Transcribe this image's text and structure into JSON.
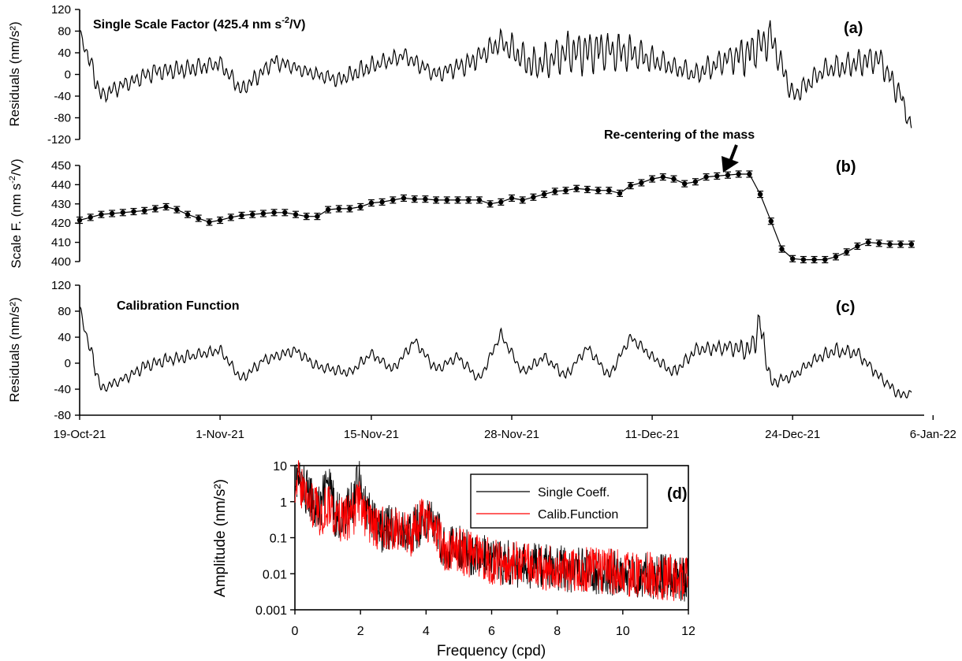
{
  "chart_data": [
    {
      "panel": "a",
      "type": "line",
      "panel_label": "(a)",
      "title": "Single Scale Factor (425.4 nm s-2/V)",
      "title_main": "Single Scale Factor (425.4 nm s",
      "title_sup": "-2",
      "title_end": "/V)",
      "ylabel": "Residuals (nm/s²)",
      "ylim": [
        -120,
        120
      ],
      "yticks": [
        -120,
        -80,
        -40,
        0,
        40,
        80,
        120
      ],
      "xlim": [
        "2021-10-19",
        "2022-01-06"
      ],
      "series": [
        {
          "x": [
            "2021-10-19",
            "2021-10-20",
            "2021-10-21",
            "2021-10-23",
            "2021-10-26",
            "2021-10-29",
            "2021-11-01",
            "2021-11-03",
            "2021-11-06",
            "2021-11-09",
            "2021-11-12",
            "2021-11-15",
            "2021-11-18",
            "2021-11-21",
            "2021-11-24",
            "2021-11-27",
            "2021-11-30",
            "2021-12-03",
            "2021-12-06",
            "2021-12-09",
            "2021-12-12",
            "2021-12-15",
            "2021-12-18",
            "2021-12-20",
            "2021-12-22",
            "2021-12-24",
            "2021-12-27",
            "2021-12-30",
            "2022-01-01",
            "2022-01-03",
            "2022-01-04"
          ],
          "values": [
            80,
            20,
            -40,
            -20,
            5,
            10,
            20,
            -30,
            25,
            5,
            -10,
            15,
            35,
            0,
            20,
            60,
            15,
            40,
            45,
            40,
            20,
            0,
            30,
            40,
            70,
            -40,
            10,
            20,
            30,
            -40,
            -100
          ],
          "amplitude": [
            5,
            25,
            15,
            15,
            18,
            18,
            15,
            15,
            15,
            12,
            15,
            18,
            15,
            15,
            20,
            25,
            35,
            40,
            40,
            35,
            20,
            20,
            25,
            40,
            35,
            20,
            20,
            25,
            25,
            25,
            15
          ]
        }
      ]
    },
    {
      "panel": "b",
      "type": "line",
      "panel_label": "(b)",
      "ylabel": "Scale F. (nm s-2/V)",
      "ylabel_main": "Scale F. (nm s",
      "ylabel_sup": "-2",
      "ylabel_end": "/V)",
      "annotation": "Re-centering of the mass",
      "annotation_date": "2021-12-21",
      "ylim": [
        400,
        450
      ],
      "yticks": [
        400,
        410,
        420,
        430,
        440,
        450
      ],
      "xlim": [
        "2021-10-19",
        "2022-01-06"
      ],
      "error_bars": true,
      "series": [
        {
          "x": [
            "2021-10-19",
            "2021-10-20",
            "2021-10-21",
            "2021-10-22",
            "2021-10-23",
            "2021-10-24",
            "2021-10-25",
            "2021-10-26",
            "2021-10-27",
            "2021-10-28",
            "2021-10-29",
            "2021-10-30",
            "2021-10-31",
            "2021-11-01",
            "2021-11-02",
            "2021-11-03",
            "2021-11-04",
            "2021-11-05",
            "2021-11-06",
            "2021-11-07",
            "2021-11-08",
            "2021-11-09",
            "2021-11-10",
            "2021-11-11",
            "2021-11-12",
            "2021-11-13",
            "2021-11-14",
            "2021-11-15",
            "2021-11-16",
            "2021-11-17",
            "2021-11-18",
            "2021-11-19",
            "2021-11-20",
            "2021-11-21",
            "2021-11-22",
            "2021-11-23",
            "2021-11-24",
            "2021-11-25",
            "2021-11-26",
            "2021-11-27",
            "2021-11-28",
            "2021-11-29",
            "2021-11-30",
            "2021-12-01",
            "2021-12-02",
            "2021-12-03",
            "2021-12-04",
            "2021-12-05",
            "2021-12-06",
            "2021-12-07",
            "2021-12-08",
            "2021-12-09",
            "2021-12-10",
            "2021-12-11",
            "2021-12-12",
            "2021-12-13",
            "2021-12-14",
            "2021-12-15",
            "2021-12-16",
            "2021-12-17",
            "2021-12-18",
            "2021-12-19",
            "2021-12-20",
            "2021-12-21",
            "2021-12-22",
            "2021-12-23",
            "2021-12-24",
            "2021-12-25",
            "2021-12-26",
            "2021-12-27",
            "2021-12-28",
            "2021-12-29",
            "2021-12-30",
            "2021-12-31",
            "2022-01-01",
            "2022-01-02",
            "2022-01-03",
            "2022-01-04"
          ],
          "values": [
            421.5,
            423,
            424.5,
            425,
            425.5,
            426,
            426.5,
            427.5,
            428.5,
            427,
            424.5,
            422.5,
            420.5,
            421.5,
            423,
            424,
            424.5,
            425,
            425.5,
            425.5,
            424.5,
            423.5,
            423.5,
            427,
            427.5,
            427.5,
            428.5,
            430.5,
            431,
            432,
            433,
            432.5,
            432.5,
            432,
            432,
            432,
            432,
            432,
            430,
            431,
            433,
            432,
            433.5,
            435,
            436.5,
            437,
            438,
            437.5,
            437,
            437,
            435.5,
            439.5,
            441,
            443,
            444,
            443,
            440.5,
            441.5,
            444,
            444.5,
            445,
            445.5,
            445.5,
            435,
            421,
            406.5,
            401.5,
            401,
            401,
            401,
            402.5,
            405,
            408,
            410,
            409.5,
            409,
            409,
            409
          ]
        }
      ]
    },
    {
      "panel": "c",
      "type": "line",
      "panel_label": "(c)",
      "title": "Calibration Function",
      "ylabel": "Residuals (nm/s²)",
      "ylim": [
        -80,
        120
      ],
      "yticks": [
        -80,
        -40,
        0,
        40,
        80,
        120
      ],
      "xlim": [
        "2021-10-19",
        "2022-01-06"
      ],
      "xticks": [
        "19-Oct-21",
        "1-Nov-21",
        "15-Nov-21",
        "28-Nov-21",
        "11-Dec-21",
        "24-Dec-21",
        "6-Jan-22"
      ],
      "series": [
        {
          "x": [
            "2021-10-19",
            "2021-10-20",
            "2021-10-21",
            "2021-10-23",
            "2021-10-25",
            "2021-10-27",
            "2021-10-29",
            "2021-11-01",
            "2021-11-03",
            "2021-11-05",
            "2021-11-08",
            "2021-11-10",
            "2021-11-13",
            "2021-11-15",
            "2021-11-17",
            "2021-11-19",
            "2021-11-21",
            "2021-11-23",
            "2021-11-25",
            "2021-11-27",
            "2021-11-29",
            "2021-12-01",
            "2021-12-03",
            "2021-12-05",
            "2021-12-07",
            "2021-12-09",
            "2021-12-11",
            "2021-12-13",
            "2021-12-15",
            "2021-12-18",
            "2021-12-20",
            "2021-12-21",
            "2021-12-22",
            "2021-12-24",
            "2021-12-26",
            "2021-12-28",
            "2021-12-30",
            "2022-01-01",
            "2022-01-03",
            "2022-01-04"
          ],
          "values": [
            85,
            20,
            -40,
            -25,
            -5,
            5,
            10,
            20,
            -25,
            5,
            20,
            -5,
            -15,
            15,
            -10,
            35,
            -10,
            10,
            -25,
            45,
            -15,
            10,
            -20,
            25,
            -20,
            40,
            10,
            -15,
            20,
            25,
            20,
            60,
            -30,
            -20,
            5,
            20,
            15,
            -20,
            -50,
            -45
          ],
          "amplitude": [
            5,
            15,
            8,
            8,
            10,
            10,
            10,
            8,
            8,
            8,
            8,
            8,
            8,
            8,
            8,
            8,
            8,
            8,
            8,
            8,
            8,
            8,
            8,
            8,
            8,
            8,
            8,
            10,
            10,
            12,
            18,
            30,
            10,
            8,
            8,
            12,
            10,
            8,
            8,
            5
          ]
        }
      ]
    },
    {
      "panel": "d",
      "type": "line",
      "panel_label": "(d)",
      "xlabel": "Frequency (cpd)",
      "ylabel": "Amplitude (nm/s²)",
      "x_scale": "linear",
      "y_scale": "log",
      "xlim": [
        0,
        12
      ],
      "ylim": [
        0.001,
        10
      ],
      "xticks": [
        0,
        2,
        4,
        6,
        8,
        10,
        12
      ],
      "yticks": [
        0.001,
        0.01,
        0.1,
        1,
        10
      ],
      "ytick_labels": [
        "0.001",
        "0.01",
        "0.1",
        "1",
        "10"
      ],
      "legend": {
        "position": "top-right",
        "entries": [
          "Single Coeff.",
          "Calib.Function"
        ]
      },
      "series": [
        {
          "name": "Single Coeff.",
          "color": "#000000",
          "x": [
            0,
            0.2,
            0.5,
            0.8,
            1.0,
            1.2,
            1.5,
            1.8,
            1.93,
            2.1,
            2.5,
            3.0,
            3.5,
            4.0,
            4.5,
            5.0,
            6.0,
            8.0,
            10.0,
            12.0
          ],
          "values": [
            7,
            4,
            1.5,
            0.8,
            4,
            0.7,
            0.5,
            1.5,
            8,
            1.0,
            0.2,
            0.3,
            0.15,
            0.5,
            0.08,
            0.07,
            0.03,
            0.02,
            0.015,
            0.01
          ]
        },
        {
          "name": "Calib.Function",
          "color": "#ff0000",
          "x": [
            0,
            0.2,
            0.5,
            0.8,
            1.0,
            1.2,
            1.5,
            1.8,
            1.93,
            2.1,
            2.5,
            3.0,
            3.5,
            4.0,
            4.5,
            5.0,
            6.0,
            8.0,
            10.0,
            12.0
          ],
          "values": [
            6,
            3.5,
            1.2,
            0.6,
            1.3,
            0.5,
            0.4,
            0.7,
            1.8,
            0.6,
            0.2,
            0.3,
            0.15,
            0.5,
            0.08,
            0.06,
            0.03,
            0.02,
            0.015,
            0.01
          ]
        }
      ]
    }
  ]
}
